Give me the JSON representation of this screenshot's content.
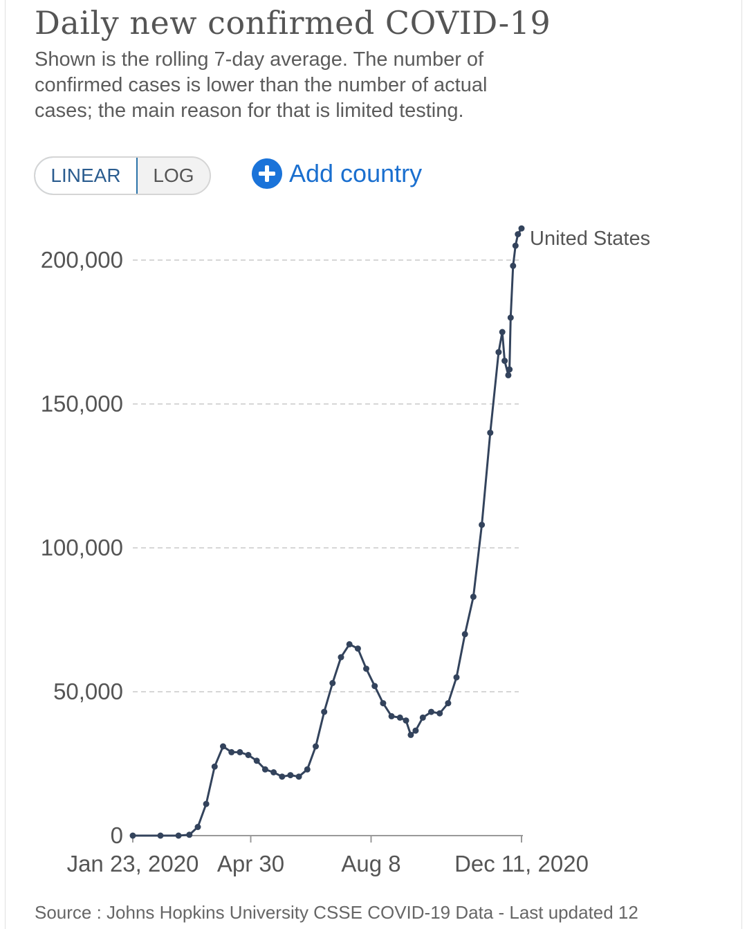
{
  "header": {
    "title": "Daily new confirmed COVID-19",
    "subtitle": "Shown is the rolling 7-day average. The number of confirmed cases is lower than the number of actual cases; the main reason for that is limited testing."
  },
  "controls": {
    "linear_label": "LINEAR",
    "log_label": "LOG",
    "add_country_label": "Add country",
    "selected_scale": "linear"
  },
  "colors": {
    "series_line": "#33435c",
    "grid": "#c8c8c8",
    "accent_blue": "#1a73d9",
    "toggle_border": "#2a72a8"
  },
  "chart_data": {
    "type": "line",
    "title": "Daily new confirmed COVID-19",
    "xlabel": "",
    "ylabel": "",
    "ylim": [
      0,
      212000
    ],
    "yticks": [
      0,
      50000,
      100000,
      150000,
      200000
    ],
    "ytick_labels": [
      "0",
      "50,000",
      "100,000",
      "150,000",
      "200,000"
    ],
    "xticks": [
      "2020-01-23",
      "2020-04-30",
      "2020-08-08",
      "2020-12-11"
    ],
    "xtick_labels": [
      "Jan 23, 2020",
      "Apr 30",
      "Aug 8",
      "Dec 11, 2020"
    ],
    "xlim": [
      "2020-01-23",
      "2020-12-11"
    ],
    "grid": "horizontal dashed",
    "legend": "end-of-line label",
    "series": [
      {
        "name": "United States",
        "points": [
          [
            "2020-01-23",
            0
          ],
          [
            "2020-02-15",
            0
          ],
          [
            "2020-03-01",
            0
          ],
          [
            "2020-03-10",
            300
          ],
          [
            "2020-03-17",
            3000
          ],
          [
            "2020-03-24",
            11000
          ],
          [
            "2020-03-31",
            24000
          ],
          [
            "2020-04-07",
            31000
          ],
          [
            "2020-04-14",
            29000
          ],
          [
            "2020-04-21",
            29000
          ],
          [
            "2020-04-28",
            28000
          ],
          [
            "2020-05-05",
            26000
          ],
          [
            "2020-05-12",
            23000
          ],
          [
            "2020-05-19",
            22000
          ],
          [
            "2020-05-26",
            20500
          ],
          [
            "2020-06-02",
            21000
          ],
          [
            "2020-06-09",
            20500
          ],
          [
            "2020-06-16",
            23000
          ],
          [
            "2020-06-23",
            31000
          ],
          [
            "2020-06-30",
            43000
          ],
          [
            "2020-07-07",
            53000
          ],
          [
            "2020-07-14",
            62000
          ],
          [
            "2020-07-21",
            66500
          ],
          [
            "2020-07-28",
            65000
          ],
          [
            "2020-08-04",
            58000
          ],
          [
            "2020-08-11",
            52000
          ],
          [
            "2020-08-18",
            46000
          ],
          [
            "2020-08-25",
            41500
          ],
          [
            "2020-09-01",
            41000
          ],
          [
            "2020-09-06",
            40000
          ],
          [
            "2020-09-10",
            35000
          ],
          [
            "2020-09-14",
            36500
          ],
          [
            "2020-09-20",
            41000
          ],
          [
            "2020-09-27",
            43000
          ],
          [
            "2020-10-04",
            42500
          ],
          [
            "2020-10-11",
            46000
          ],
          [
            "2020-10-18",
            55000
          ],
          [
            "2020-10-25",
            70000
          ],
          [
            "2020-11-01",
            83000
          ],
          [
            "2020-11-08",
            108000
          ],
          [
            "2020-11-15",
            140000
          ],
          [
            "2020-11-22",
            168000
          ],
          [
            "2020-11-25",
            175000
          ],
          [
            "2020-11-27",
            165000
          ],
          [
            "2020-11-30",
            160000
          ],
          [
            "2020-12-01",
            162000
          ],
          [
            "2020-12-02",
            180000
          ],
          [
            "2020-12-04",
            198000
          ],
          [
            "2020-12-06",
            205000
          ],
          [
            "2020-12-08",
            209000
          ],
          [
            "2020-12-11",
            211000
          ]
        ]
      }
    ]
  },
  "footer": {
    "source": "Source : Johns Hopkins University CSSE COVID-19 Data - Last updated 12"
  }
}
